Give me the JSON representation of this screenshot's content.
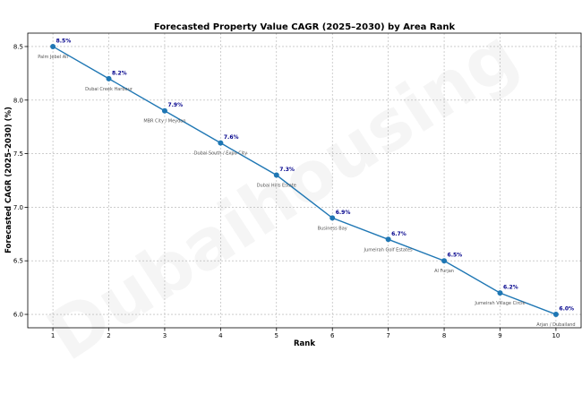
{
  "watermark": "Dubaihousing",
  "chart_data": {
    "type": "line",
    "title": "Forecasted Property Value CAGR (2025–2030) by Area Rank",
    "xlabel": "Rank",
    "ylabel": "Forecasted CAGR (2025–2030) (%)",
    "x": [
      1,
      2,
      3,
      4,
      5,
      6,
      7,
      8,
      9,
      10
    ],
    "y": [
      8.5,
      8.2,
      7.9,
      7.6,
      7.3,
      6.9,
      6.7,
      6.5,
      6.2,
      6.0
    ],
    "data_labels": [
      "8.5%",
      "8.2%",
      "7.9%",
      "7.6%",
      "7.3%",
      "6.9%",
      "6.7%",
      "6.5%",
      "6.2%",
      "6.0%"
    ],
    "areas": [
      "Palm Jebel Ali",
      "Dubai Creek Harbour",
      "MBR City / Meydan",
      "Dubai South / Expo City",
      "Dubai Hills Estate",
      "Business Bay",
      "Jumeirah Golf Estates",
      "Al Furjan",
      "Jumeirah Village Circle",
      "Arjan / Dubailand"
    ],
    "x_ticks": [
      "1",
      "2",
      "3",
      "4",
      "5",
      "6",
      "7",
      "8",
      "9",
      "10"
    ],
    "y_ticks": [
      "6.0",
      "6.5",
      "7.0",
      "7.5",
      "8.0",
      "8.5"
    ],
    "xlim": [
      0.55,
      10.45
    ],
    "ylim": [
      5.875,
      8.625
    ],
    "grid": true,
    "line_color": "#1f77b4",
    "marker_color": "#1f77b4",
    "label_color": "#00008b"
  }
}
